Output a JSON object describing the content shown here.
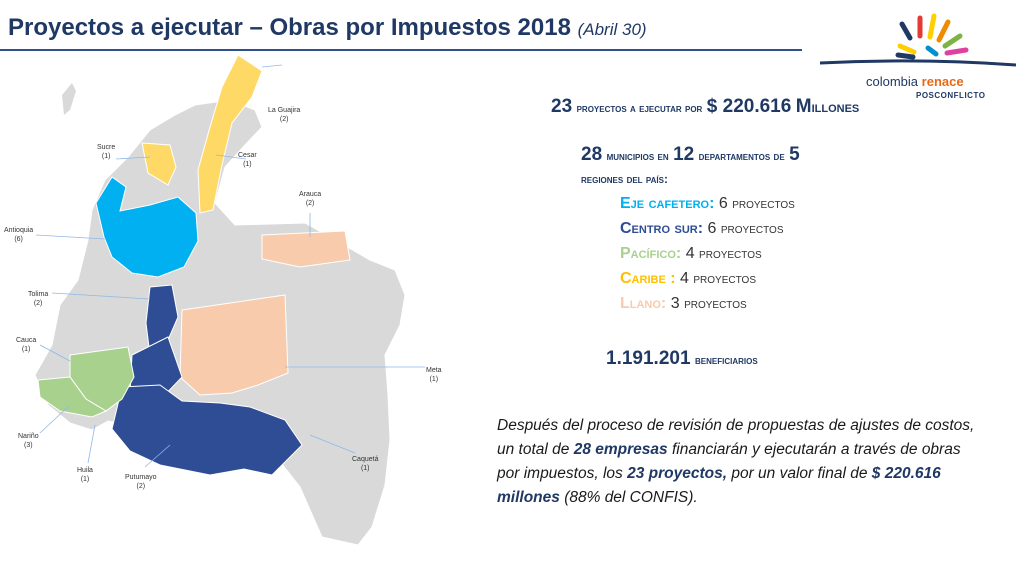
{
  "header": {
    "title": "Proyectos a ejecutar – Obras por Impuestos 2018",
    "subtitle": "(Abril 30)"
  },
  "logo": {
    "name_part1": "colombia",
    "name_part2": "renace",
    "tagline": "POSCONFLICTO"
  },
  "map": {
    "labels": [
      {
        "name": "La Guajira",
        "count": "(2)"
      },
      {
        "name": "Sucre",
        "count": "(1)"
      },
      {
        "name": "Cesar",
        "count": "(1)"
      },
      {
        "name": "Arauca",
        "count": "(2)"
      },
      {
        "name": "Antioquia",
        "count": "(6)"
      },
      {
        "name": "Tolima",
        "count": "(2)"
      },
      {
        "name": "Cauca",
        "count": "(1)"
      },
      {
        "name": "Meta",
        "count": "(1)"
      },
      {
        "name": "Nariño",
        "count": "(3)"
      },
      {
        "name": "Caquetá",
        "count": "(1)"
      },
      {
        "name": "Huila",
        "count": "(1)"
      },
      {
        "name": "Putumayo",
        "count": "(2)"
      }
    ],
    "colors": {
      "caribe": "#ffd966",
      "eje_cafetero": "#00b0f0",
      "centro_sur": "#2e4d94",
      "pacifico": "#a9d18e",
      "llano": "#f8cbad",
      "base": "#d9d9d9"
    }
  },
  "stats": {
    "projects_number": "23",
    "projects_text": "proyectos a ejecutar por",
    "amount": "$ 220.616",
    "millones_initial": "M",
    "millones_rest": "illones",
    "municipios_number": "28",
    "municipios_text": "municipios en",
    "departamentos_number": "12",
    "departamentos_text": "departamentos de",
    "regiones_number": "5",
    "regiones_text": "regiones del país:",
    "beneficiarios_number": "1.191.201",
    "beneficiarios_text": "beneficiarios"
  },
  "regions": [
    {
      "name": "Eje cafetero:",
      "count": "6",
      "unit": "proyectos",
      "color": "#00b0f0"
    },
    {
      "name": "Centro sur:",
      "count": "6",
      "unit": "proyectos",
      "color": "#2e4d94"
    },
    {
      "name": "Pacífico:",
      "count": "4",
      "unit": "proyectos",
      "color": "#a9d18e"
    },
    {
      "name": "Caribe :",
      "count": "4",
      "unit": "proyectos",
      "color": "#ffc000"
    },
    {
      "name": "Llano:",
      "count": "3",
      "unit": "proyectos",
      "color": "#f8cbad"
    }
  ],
  "paragraph": {
    "p1": "Después del proceso de revisión de propuestas de ajustes de costos, un total de ",
    "b1": "28 empresas",
    "p2": " financiarán y ejecutarán a través de obras por impuestos, los ",
    "b2": "23 proyectos,",
    "p3": " por un valor final de ",
    "b3": "$ 220.616 millones",
    "p4": " (88% del CONFIS)."
  }
}
